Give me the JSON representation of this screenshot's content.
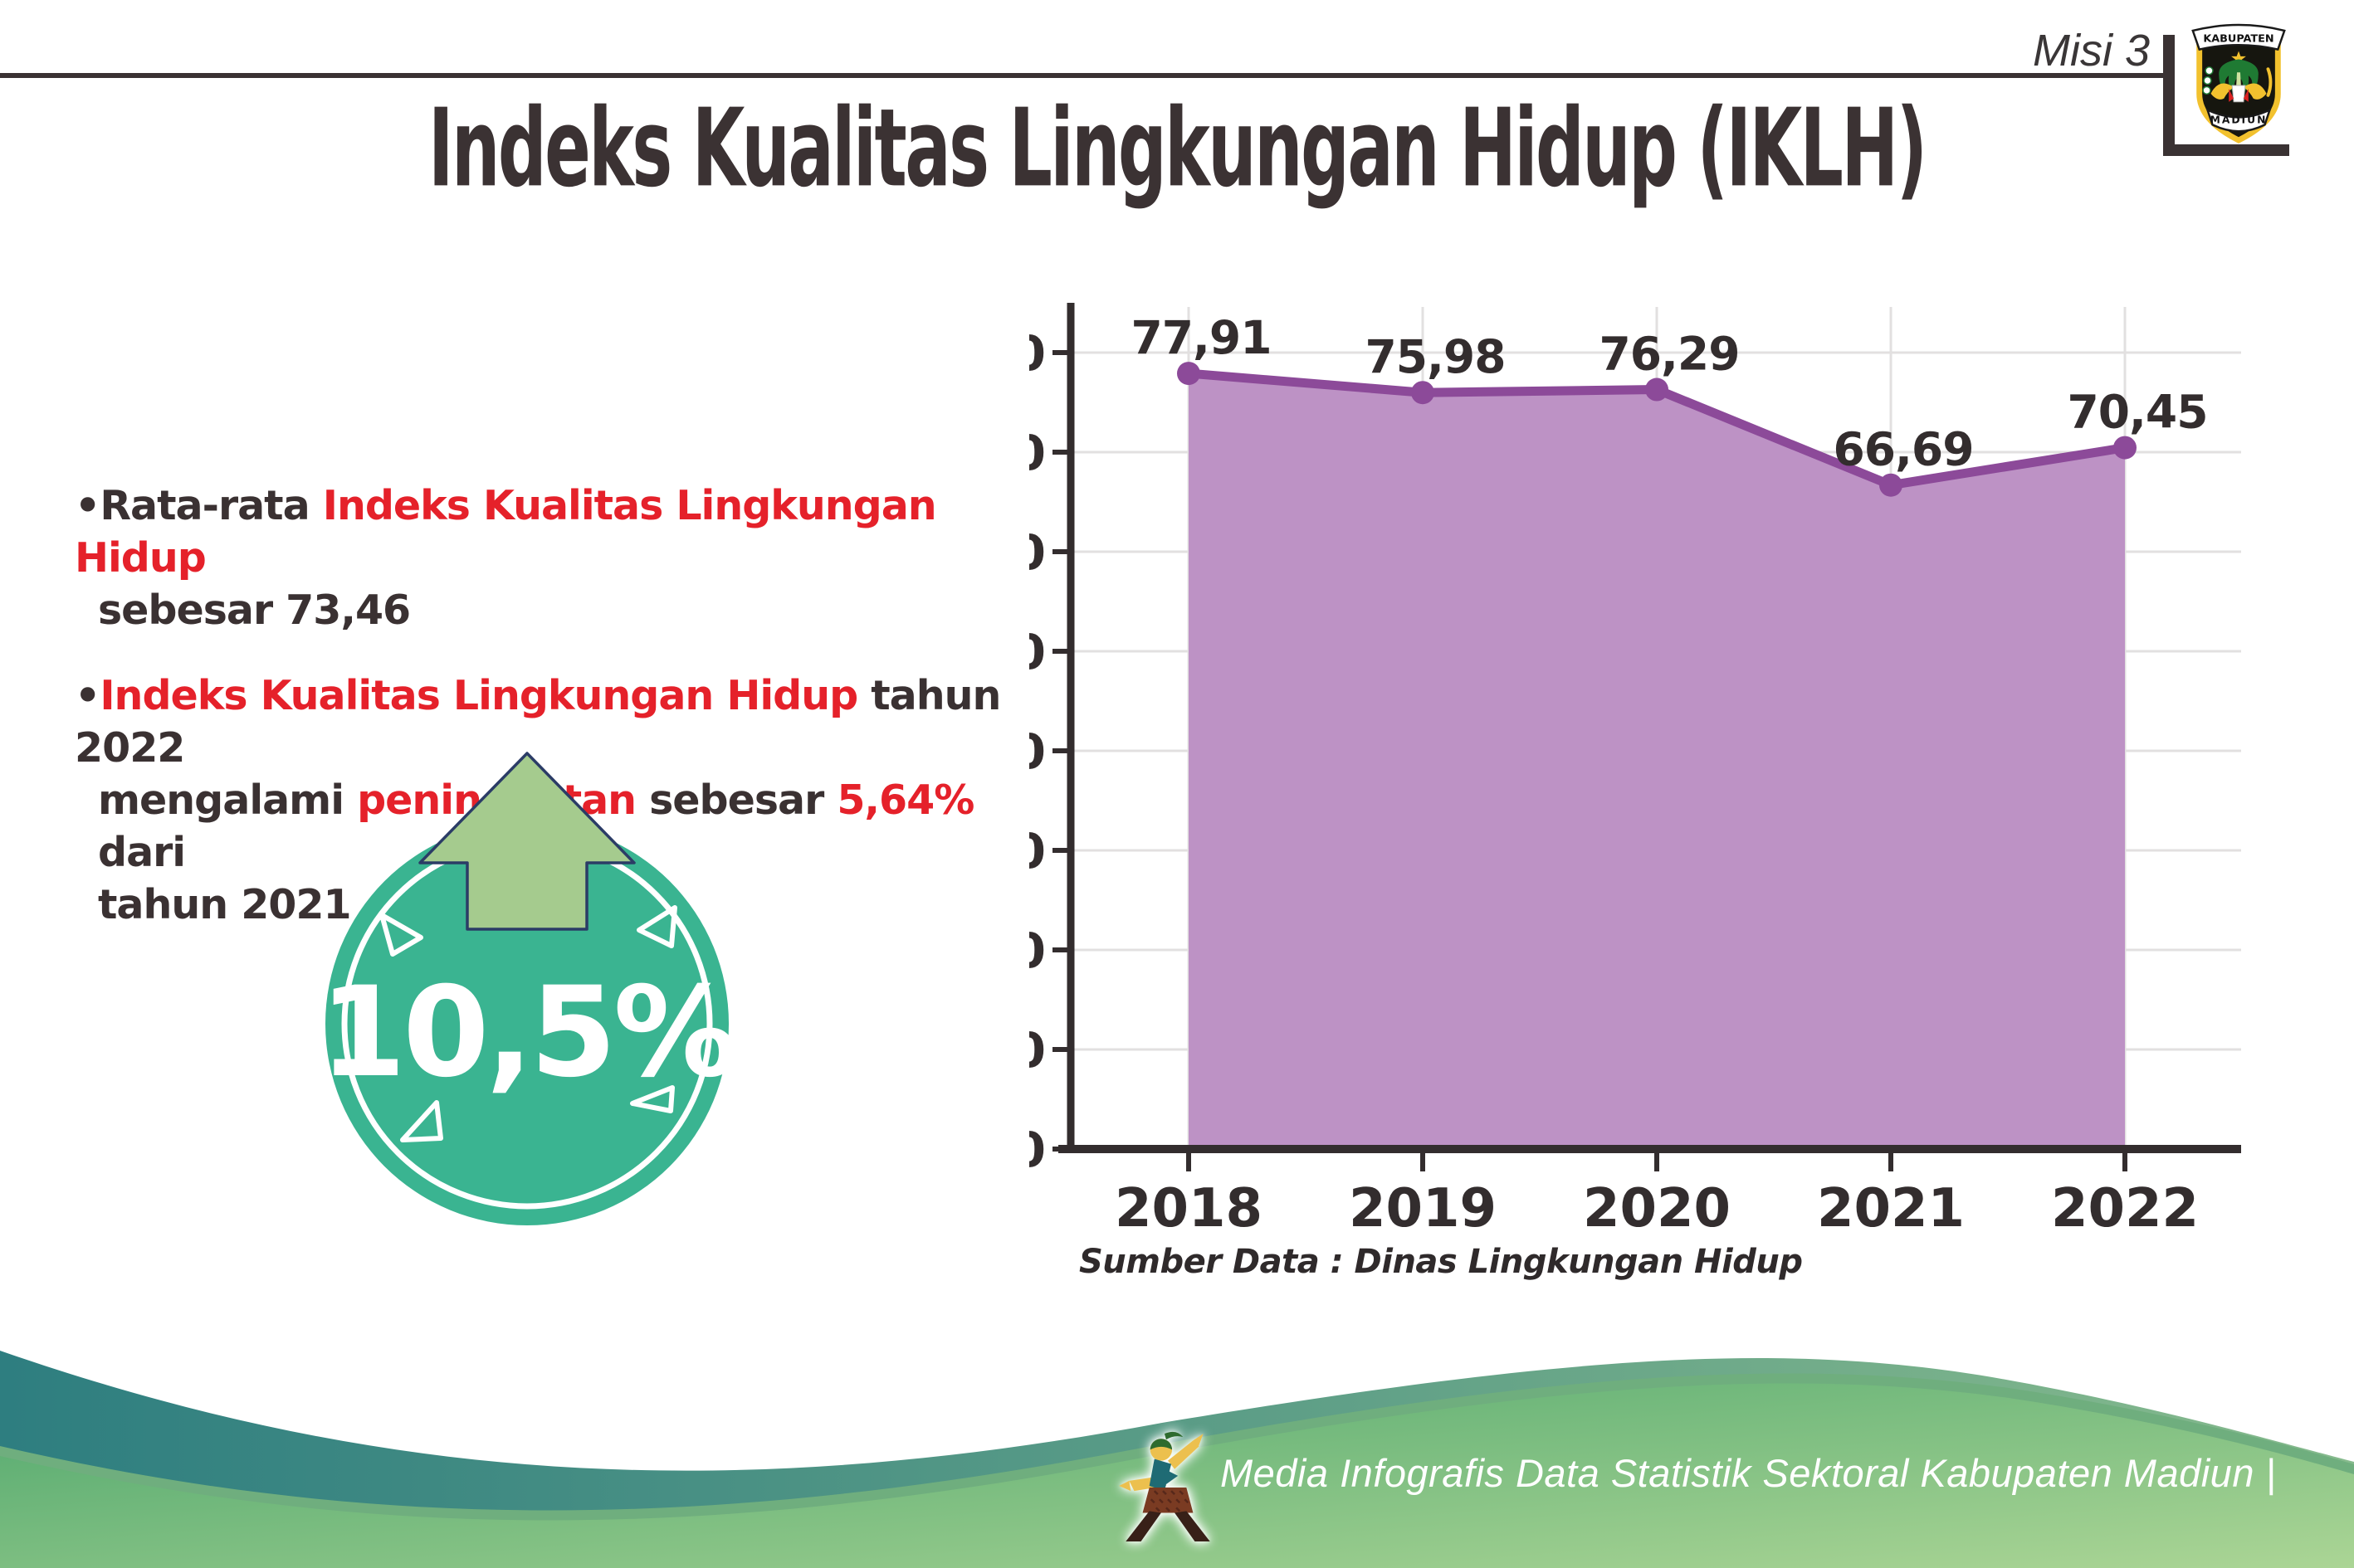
{
  "header": {
    "misi": "Misi 3",
    "title": "Indeks Kualitas Lingkungan Hidup (IKLH)"
  },
  "logo": {
    "top": "KABUPATEN",
    "bottom": "MADIUN"
  },
  "bullet1": {
    "prefix": "•",
    "part1": "Rata-rata ",
    "part2_red": "Indeks Kualitas Lingkungan Hidup",
    "line2": "sebesar 73,46"
  },
  "bullet2": {
    "prefix": "•",
    "part1_red": "Indeks Kualitas Lingkungan Hidup",
    "part2": " tahun 2022",
    "line2_part1": "mengalami ",
    "line2_part2_red": "peningkatan",
    "line2_part3": " sebesar ",
    "line2_part4_red": "5,64%",
    "line2_part5": " dari",
    "line3": "tahun 2021"
  },
  "badge": {
    "value": "10,5%"
  },
  "chart_data": {
    "type": "area",
    "categories": [
      "2018",
      "2019",
      "2020",
      "2021",
      "2022"
    ],
    "values": [
      77.91,
      75.98,
      76.29,
      66.69,
      70.45
    ],
    "value_labels": [
      "77,91",
      "75,98",
      "76,29",
      "66,69",
      "70,45"
    ],
    "title": "",
    "xlabel": "",
    "ylabel": "",
    "ylim": [
      0,
      80
    ],
    "ytick_step": 10,
    "grid": true,
    "legend": "none"
  },
  "source_note": "Sumber Data : Dinas Lingkungan Hidup",
  "footer": {
    "credit": "Media Infografis Data Statistik Sektoral Kabupaten Madiun |"
  },
  "colors": {
    "text_dark": "#3a3132",
    "accent_red": "#e5212a",
    "title_dark": "#3b3233",
    "axis_dark": "#332d2e",
    "grid_gray": "#e2e0e0",
    "area_fill": "#bd92c5",
    "line_purple": "#8c4a99",
    "badge_green": "#3ab491",
    "arrow_green": "#a5cb8e",
    "arrow_outline": "#2b3c66",
    "wave_teal_left": "#2e7e80",
    "wave_teal_right": "#86ba8d",
    "wave_green_light1": "#4fa76d",
    "wave_green_light2": "#abd595",
    "wave_seam": "#6fae7e",
    "logo_yellow": "#f2c12e"
  }
}
